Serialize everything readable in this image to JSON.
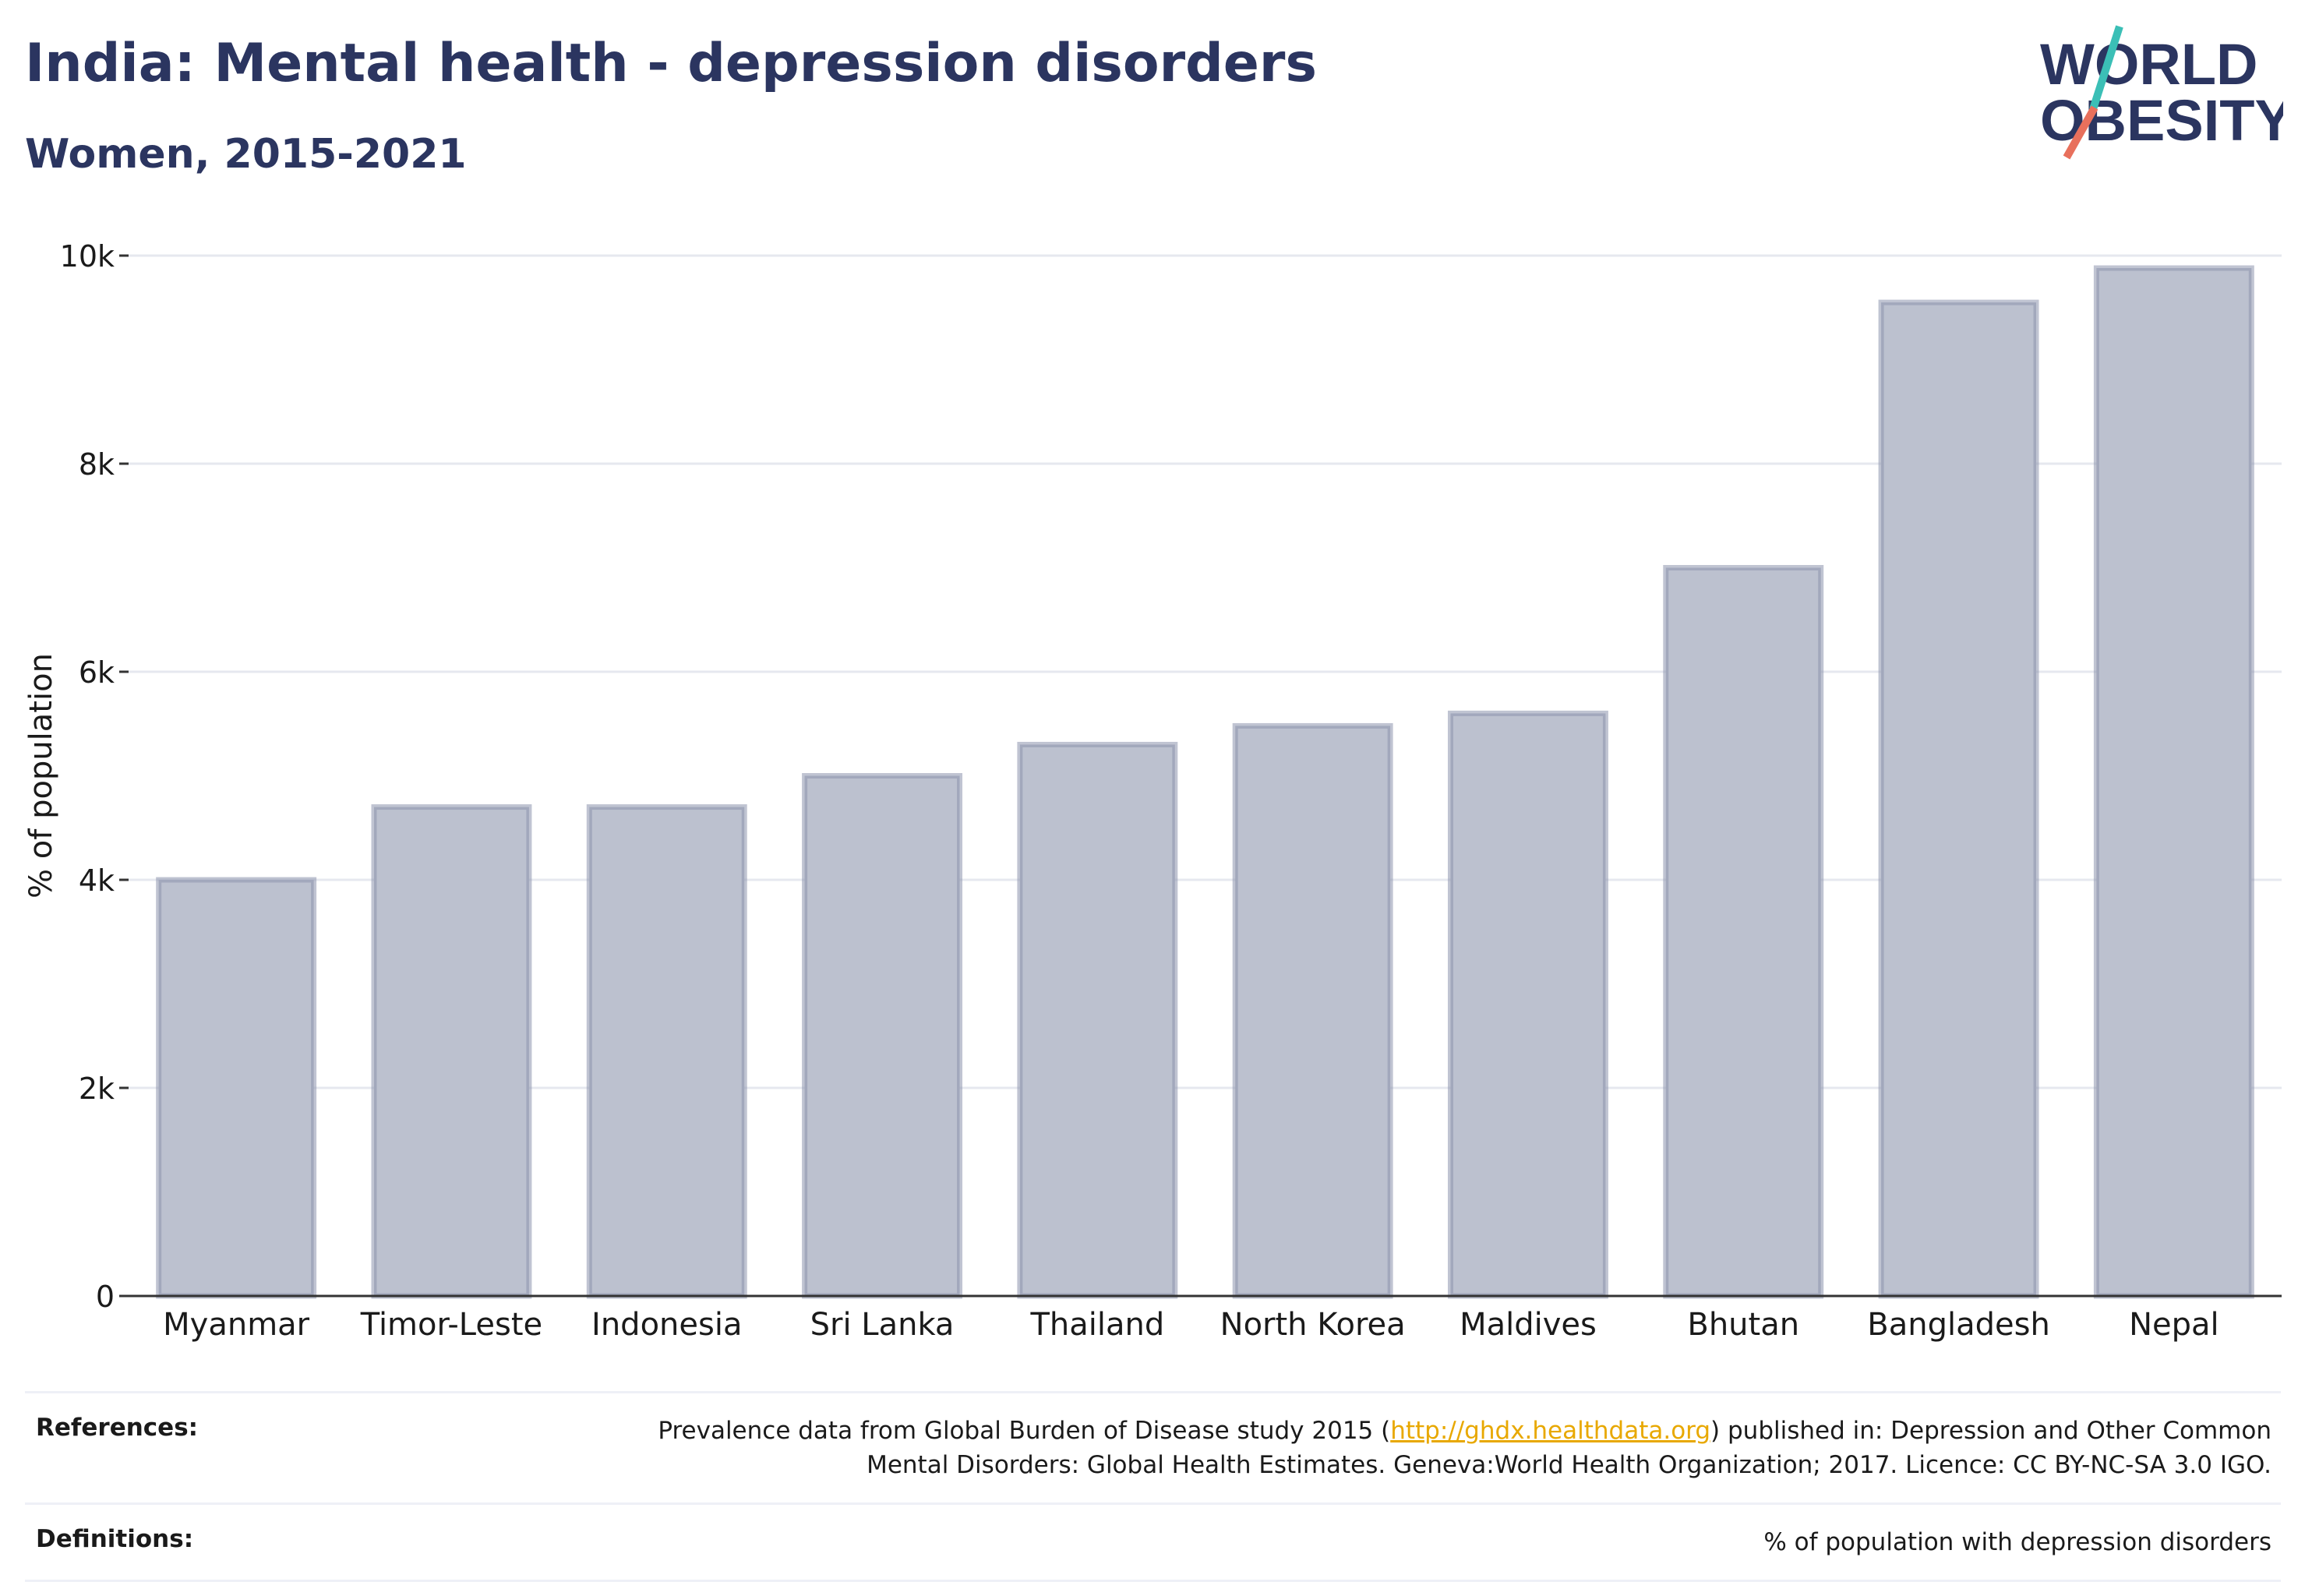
{
  "header": {
    "title": "India: Mental health - depression disorders",
    "subtitle": "Women, 2015-2021"
  },
  "logo": {
    "line1": "WORLD",
    "line2": "OBESITY",
    "icon": "world-obesity-slash-logo",
    "colors": {
      "text": "#2b3560",
      "slash_top": "#3bbfb6",
      "slash_bottom": "#e8705c"
    }
  },
  "chart_data": {
    "type": "bar",
    "categories": [
      "Myanmar",
      "Timor-Leste",
      "Indonesia",
      "Sri Lanka",
      "Thailand",
      "North Korea",
      "Maldives",
      "Bhutan",
      "Bangladesh",
      "Nepal"
    ],
    "values": [
      4000,
      4700,
      4700,
      5000,
      5300,
      5480,
      5600,
      7000,
      9550,
      9880
    ],
    "ylabel": "% of population",
    "xlabel": "",
    "ylim": [
      0,
      10000
    ],
    "yticks": [
      0,
      2000,
      4000,
      6000,
      8000,
      10000
    ],
    "ytick_labels": [
      "0",
      "2k",
      "4k",
      "6k",
      "8k",
      "10k"
    ],
    "grid": true,
    "colors": {
      "bar_fill": "#bcc1cf",
      "bar_stroke": "#8d94ad"
    }
  },
  "footer": {
    "references_label": "References:",
    "references_pre": "Prevalence data from Global Burden of Disease study 2015 (",
    "references_link": "http://ghdx.healthdata.org",
    "references_post": ") published in: Depression and Other Common Mental Disorders: Global Health Estimates. Geneva:World Health Organization; 2017. Licence: CC BY-NC-SA 3.0 IGO.",
    "definitions_label": "Definitions:",
    "definitions_text": "% of population with depression disorders"
  }
}
